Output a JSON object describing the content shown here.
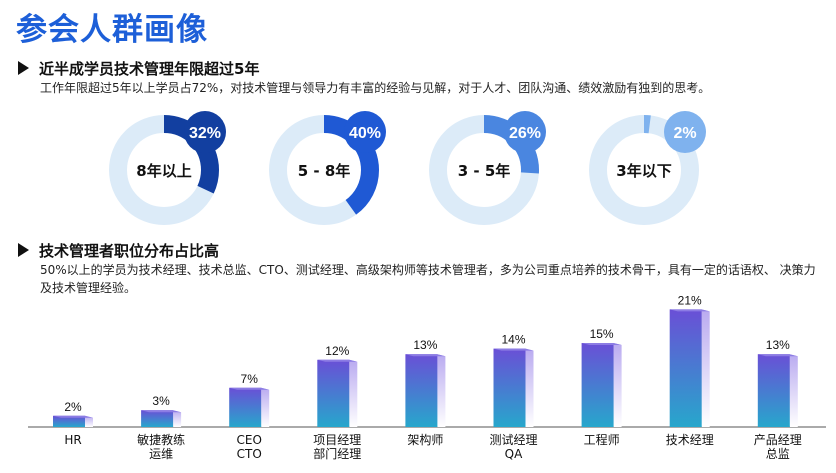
{
  "title": "参会人群画像",
  "section1": {
    "heading": "近半成学员技术管理年限超过5年",
    "desc": "工作年限超过5年以上学员占72%，对技术管理与领导力有丰富的经验与见解，对于人才、团队沟通、绩效激励有独到的思考。"
  },
  "section2": {
    "heading": "技术管理者职位分布占比高",
    "desc": "50%以上的学员为技术经理、技术总监、CTO、测试经理、高级架构师等技术管理者，多为公司重点培养的技术骨干，具有一定的话语权、 决策力及技术管理经验。"
  },
  "chart_data": [
    {
      "type": "pie",
      "subtype": "donut",
      "categories": [
        "8年以上",
        "5 - 8年",
        "3 - 5年",
        "3年以下"
      ],
      "values": [
        32,
        40,
        26,
        2
      ],
      "labels": [
        "32%",
        "40%",
        "26%",
        "2%"
      ],
      "colors": [
        "#123fa0",
        "#1f59d4",
        "#4a86e0",
        "#7fb2ee"
      ],
      "track_color": "#dcebf8"
    },
    {
      "type": "bar",
      "categories": [
        [
          "HR"
        ],
        [
          "敏捷教练",
          "运维"
        ],
        [
          "CEO",
          "CTO"
        ],
        [
          "项目经理",
          "部门经理"
        ],
        [
          "架构师"
        ],
        [
          "测试经理",
          "QA"
        ],
        [
          "工程师"
        ],
        [
          "技术经理"
        ],
        [
          "产品经理",
          "总监"
        ]
      ],
      "values": [
        2,
        3,
        7,
        12,
        13,
        14,
        15,
        21,
        13
      ],
      "labels": [
        "2%",
        "3%",
        "7%",
        "12%",
        "13%",
        "14%",
        "15%",
        "21%",
        "13%"
      ],
      "colors": {
        "top": "#6a4fd6",
        "bottom": "#27a7cc"
      }
    }
  ]
}
